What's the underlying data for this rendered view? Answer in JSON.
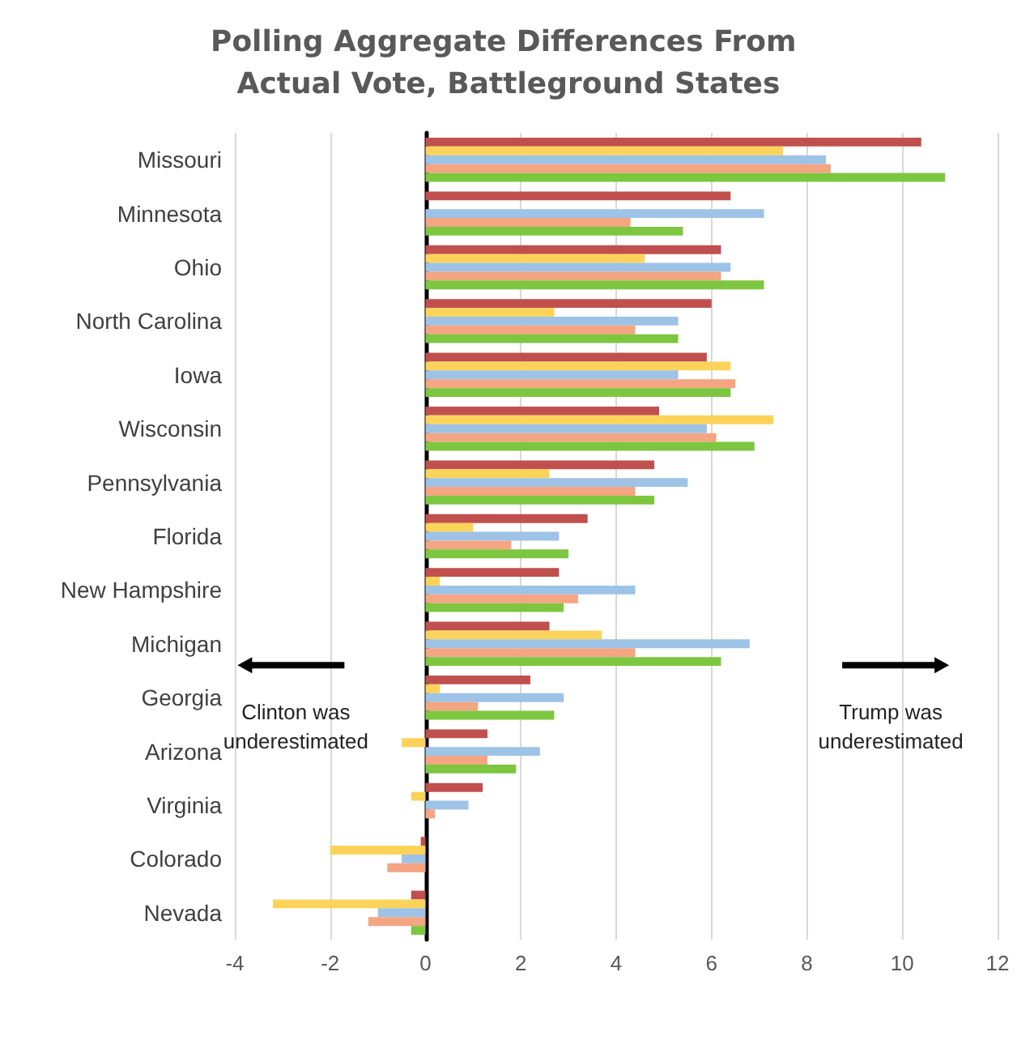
{
  "chart_data": {
    "type": "bar",
    "orientation": "horizontal",
    "title": "Polling Aggregate Differences From Actual Vote, Battleground States",
    "categories": [
      "Missouri",
      "Minnesota",
      "Ohio",
      "North Carolina",
      "Iowa",
      "Wisconsin",
      "Pennsylvania",
      "Florida",
      "New Hampshire",
      "Michigan",
      "Georgia",
      "Arizona",
      "Virginia",
      "Colorado",
      "Nevada"
    ],
    "series": [
      {
        "color": "#c0504d",
        "values": [
          10.4,
          6.4,
          6.2,
          6.0,
          5.9,
          4.9,
          4.8,
          3.4,
          2.8,
          2.6,
          2.2,
          1.3,
          1.2,
          -0.1,
          -0.3
        ]
      },
      {
        "color": "#fcd35a",
        "values": [
          7.5,
          null,
          4.6,
          2.7,
          6.4,
          7.3,
          2.6,
          1.0,
          0.3,
          3.7,
          0.3,
          -0.5,
          -0.3,
          -2.0,
          -3.2
        ]
      },
      {
        "color": "#9dc3e6",
        "values": [
          8.4,
          7.1,
          6.4,
          5.3,
          5.3,
          5.9,
          5.5,
          2.8,
          4.4,
          6.8,
          2.9,
          2.4,
          0.9,
          -0.5,
          -1.0
        ]
      },
      {
        "color": "#f4a582",
        "values": [
          8.5,
          4.3,
          6.2,
          4.4,
          6.5,
          6.1,
          4.4,
          1.8,
          3.2,
          4.4,
          1.1,
          1.3,
          0.2,
          -0.8,
          -1.2
        ]
      },
      {
        "color": "#7dc63f",
        "values": [
          10.9,
          5.4,
          7.1,
          5.3,
          6.4,
          6.9,
          4.8,
          3.0,
          2.9,
          6.2,
          2.7,
          1.9,
          null,
          null,
          -0.3
        ]
      }
    ],
    "xlim": [
      -4,
      12
    ],
    "xticks": [
      -4,
      -2,
      0,
      2,
      4,
      6,
      8,
      10,
      12
    ],
    "grid": "x",
    "annotations": [
      "Clinton was underestimated",
      "Trump was underestimated"
    ]
  }
}
